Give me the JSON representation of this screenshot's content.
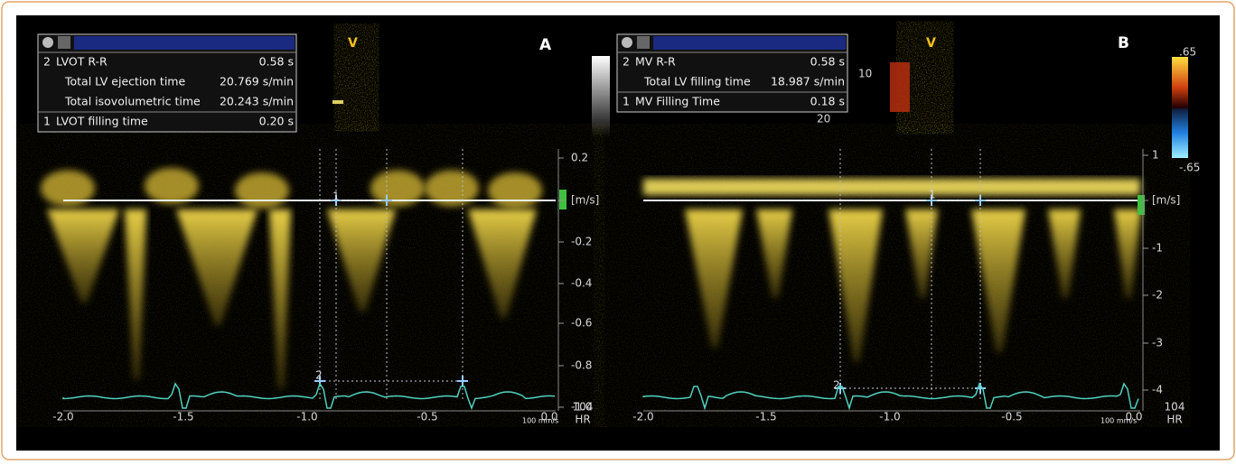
{
  "panels": [
    {
      "label": "A",
      "view": "V",
      "measurements": [
        {
          "index": "2",
          "name": "LVOT R-R",
          "value": "0.58 s"
        },
        {
          "name": "Total LV ejection time",
          "value": "20.769 s/min"
        },
        {
          "name": "Total isovolumetric time",
          "value": "20.243 s/min"
        },
        {
          "index": "1",
          "name": "LVOT filling time",
          "value": "0.20 s"
        }
      ],
      "velocity_ticks": [
        "0.2",
        "[m/s]",
        "-0.2",
        "-0.4",
        "-0.6",
        "-0.8",
        "-1.0"
      ],
      "time_ticks": [
        "-2.0",
        "-1.5",
        "-1.0",
        "-0.5",
        "0.0"
      ],
      "sweep": "100 mm/s",
      "heart_rate": "104",
      "heart_rate_unit": "HR",
      "markers": [
        "1",
        "2"
      ]
    },
    {
      "label": "B",
      "view": "V",
      "measurements": [
        {
          "index": "2",
          "name": "MV R-R",
          "value": "0.58 s"
        },
        {
          "name": "Total LV filling time",
          "value": "18.987 s/min"
        },
        {
          "index": "1",
          "name": "MV Filling Time",
          "value": "0.18 s"
        }
      ],
      "velocity_ticks": [
        "1",
        "[m/s]",
        "-1",
        "-2",
        "-3",
        "-4"
      ],
      "time_ticks": [
        "-2.0",
        "-1.5",
        "-1.0",
        "-0.5",
        "0.0"
      ],
      "sweep": "100 mm/s",
      "heart_rate": "104",
      "heart_rate_unit": "HR",
      "markers": [
        "1",
        "2"
      ],
      "color_scale": [
        ".65",
        "-.65"
      ],
      "depth_marks": [
        "10",
        "20"
      ]
    }
  ]
}
